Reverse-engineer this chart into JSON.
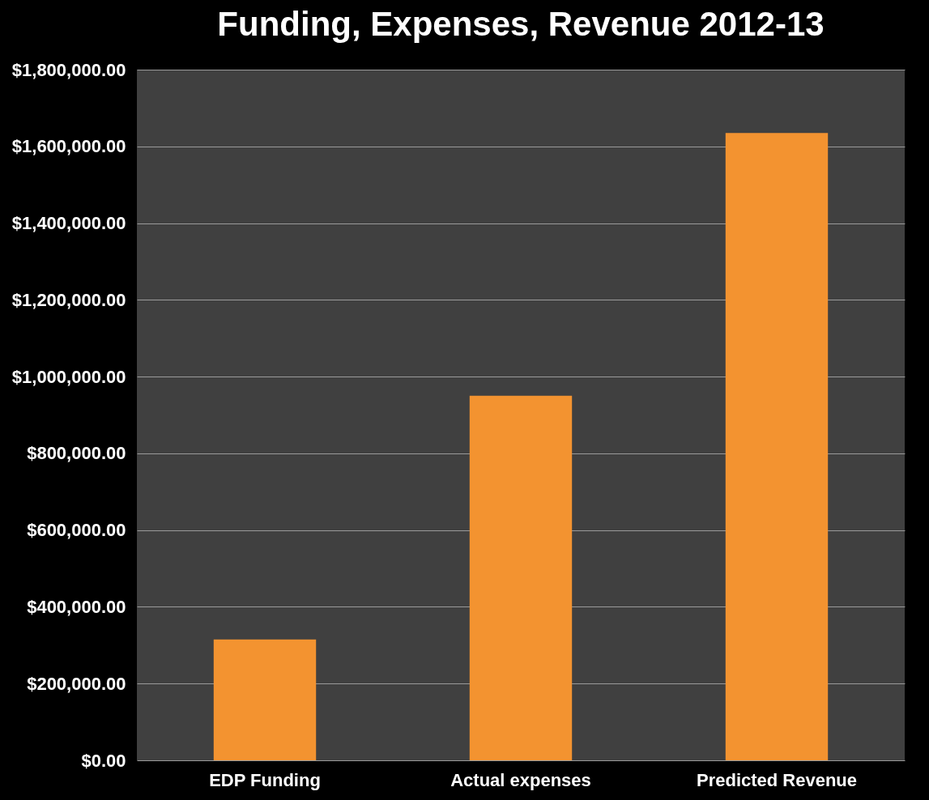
{
  "chart_data": {
    "type": "bar",
    "title": "Funding, Expenses, Revenue 2012-13",
    "categories": [
      "EDP Funding",
      "Actual expenses",
      "Predicted Revenue"
    ],
    "values": [
      315000,
      950000,
      1635000
    ],
    "color": "#f39330",
    "ylim": [
      0,
      1800000
    ],
    "yticks": [
      {
        "value": 0,
        "label": "$0.00"
      },
      {
        "value": 200000,
        "label": "$200,000.00"
      },
      {
        "value": 400000,
        "label": "$400,000.00"
      },
      {
        "value": 600000,
        "label": "$600,000.00"
      },
      {
        "value": 800000,
        "label": "$800,000.00"
      },
      {
        "value": 1000000,
        "label": "$1,000,000.00"
      },
      {
        "value": 1200000,
        "label": "$1,200,000.00"
      },
      {
        "value": 1400000,
        "label": "$1,400,000.00"
      },
      {
        "value": 1600000,
        "label": "$1,600,000.00"
      },
      {
        "value": 1800000,
        "label": "$1,800,000.00"
      }
    ],
    "grid": true
  }
}
